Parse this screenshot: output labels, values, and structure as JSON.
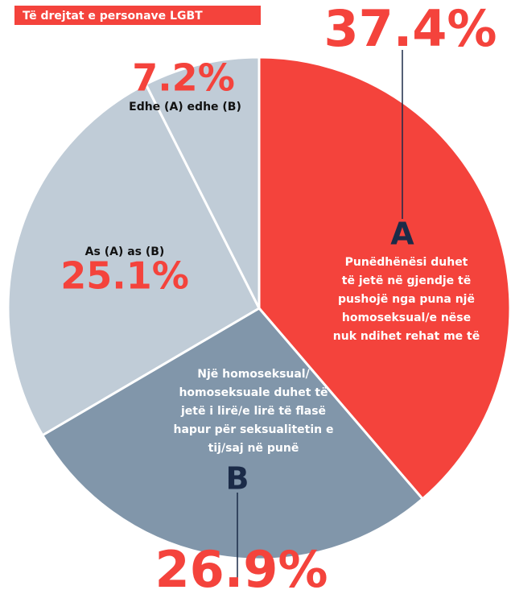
{
  "chart_data": {
    "type": "pie",
    "title": "Të drejtat e personave LGBT",
    "categories": [
      "A",
      "B",
      "As (A) as (B)",
      "Edhe (A) edhe (B)"
    ],
    "letters": [
      "A",
      "B",
      null,
      null
    ],
    "descriptions": [
      [
        "Punëdhënësi duhet",
        "të jetë në gjendje të",
        "pushojë nga puna një",
        "homoseksual/e nëse",
        "nuk ndihet rehat me të"
      ],
      [
        "Një homoseksual/",
        "homoseksuale duhet të",
        "jetë i lirë/e lirë të flasë",
        "hapur për seksualitetin e",
        "tij/saj në punë"
      ],
      [
        "As (A) as (B)"
      ],
      [
        "Edhe (A) edhe (B)"
      ]
    ],
    "values": [
      37.4,
      26.9,
      25.1,
      7.2
    ],
    "value_labels": [
      "37.4%",
      "26.9%",
      "25.1%",
      "7.2%"
    ],
    "colors": [
      "#f4433c",
      "#8196aa",
      "#c0ccd7",
      "#c0ccd7"
    ]
  }
}
